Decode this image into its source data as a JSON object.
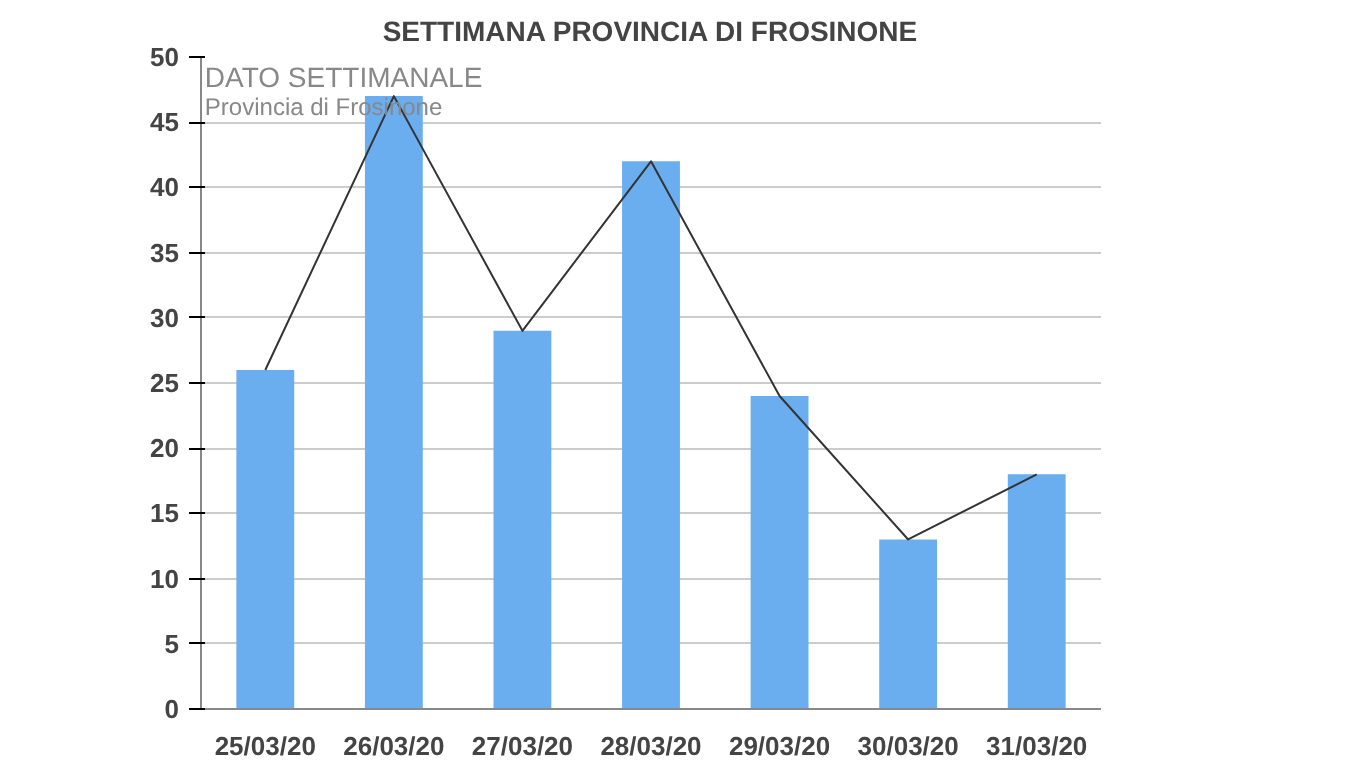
{
  "chart_data": {
    "type": "bar",
    "title": "SETTIMANA PROVINCIA DI FROSINONE",
    "categories": [
      "25/03/20",
      "26/03/20",
      "27/03/20",
      "28/03/20",
      "29/03/20",
      "30/03/20",
      "31/03/20"
    ],
    "series": [
      {
        "color": "#6aaef0",
        "values": [
          26,
          47,
          29,
          42,
          24,
          13,
          18
        ]
      },
      {
        "type": "line",
        "color": "#333333",
        "values": [
          26,
          47,
          29,
          42,
          24,
          13,
          18
        ]
      }
    ],
    "ylim": [
      0,
      50
    ],
    "yticks": [
      0,
      5,
      10,
      15,
      20,
      25,
      30,
      35,
      40,
      45,
      50
    ],
    "grid": "y",
    "annotations": [
      "DATO SETTIMANALE",
      "Provincia di Frosinone"
    ]
  }
}
